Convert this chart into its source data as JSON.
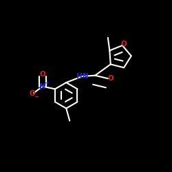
{
  "background_color": "#000000",
  "bond_color": "#ffffff",
  "atom_colors": {
    "O": "#dd2222",
    "N": "#2222dd",
    "C": "#ffffff",
    "H": "#ffffff"
  },
  "bond_width": 1.5,
  "dbo": 0.018,
  "figsize": [
    2.5,
    2.5
  ],
  "dpi": 100
}
